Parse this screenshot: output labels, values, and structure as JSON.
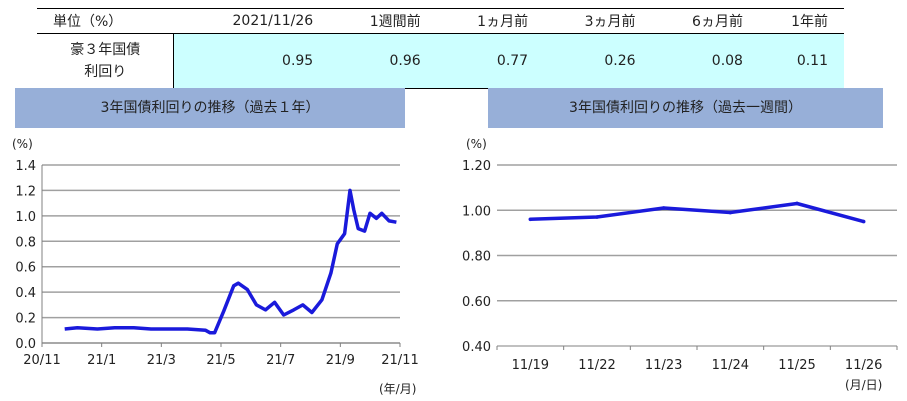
{
  "table": {
    "header_label": "単位（%）",
    "columns": [
      "2021/11/26",
      "1週間前",
      "1ヵ月前",
      "3ヵ月前",
      "6ヵ月前",
      "1年前"
    ],
    "row_label_line1": "豪３年国債",
    "row_label_line2": "利回り",
    "values": [
      "0.95",
      "0.96",
      "0.77",
      "0.26",
      "0.08",
      "0.11"
    ]
  },
  "chart_data": [
    {
      "type": "line",
      "title": "3年国債利回りの推移（過去１年）",
      "ylabel": "(%)",
      "xlabel": "(年/月)",
      "ylim": [
        0,
        1.4
      ],
      "yticks": [
        "0.0",
        "0.2",
        "0.4",
        "0.6",
        "0.8",
        "1.0",
        "1.2",
        "1.4"
      ],
      "xticks": [
        "20/11",
        "21/1",
        "21/3",
        "21/5",
        "21/7",
        "21/9",
        "21/11"
      ],
      "grid": true,
      "color": "#1a1adb",
      "series": [
        {
          "x": [
            "2020-11-26",
            "2020-12-10",
            "2021-01-01",
            "2021-01-20",
            "2021-02-10",
            "2021-03-01",
            "2021-03-20",
            "2021-04-10",
            "2021-04-30",
            "2021-05-05",
            "2021-05-10",
            "2021-05-20",
            "2021-05-31",
            "2021-06-05",
            "2021-06-15",
            "2021-06-25",
            "2021-07-05",
            "2021-07-15",
            "2021-07-25",
            "2021-08-05",
            "2021-08-15",
            "2021-08-25",
            "2021-09-05",
            "2021-09-15",
            "2021-09-22",
            "2021-09-30",
            "2021-10-06",
            "2021-10-10",
            "2021-10-15",
            "2021-10-22",
            "2021-10-28",
            "2021-11-04",
            "2021-11-10",
            "2021-11-18",
            "2021-11-26"
          ],
          "y": [
            0.11,
            0.12,
            0.11,
            0.12,
            0.12,
            0.11,
            0.11,
            0.11,
            0.1,
            0.08,
            0.08,
            0.25,
            0.45,
            0.47,
            0.42,
            0.3,
            0.26,
            0.32,
            0.22,
            0.26,
            0.3,
            0.24,
            0.34,
            0.55,
            0.78,
            0.86,
            1.2,
            1.05,
            0.9,
            0.88,
            1.02,
            0.98,
            1.02,
            0.96,
            0.95
          ]
        }
      ]
    },
    {
      "type": "line",
      "title": "3年国債利回りの推移（過去一週間）",
      "ylabel": "(%)",
      "xlabel": "(月/日)",
      "ylim": [
        0.4,
        1.2
      ],
      "yticks": [
        "0.40",
        "0.60",
        "0.80",
        "1.00",
        "1.20"
      ],
      "categories": [
        "11/19",
        "11/22",
        "11/23",
        "11/24",
        "11/25",
        "11/26"
      ],
      "grid": true,
      "color": "#1a1adb",
      "series": [
        {
          "values": [
            0.96,
            0.97,
            1.01,
            0.99,
            1.03,
            0.95
          ]
        }
      ]
    }
  ]
}
